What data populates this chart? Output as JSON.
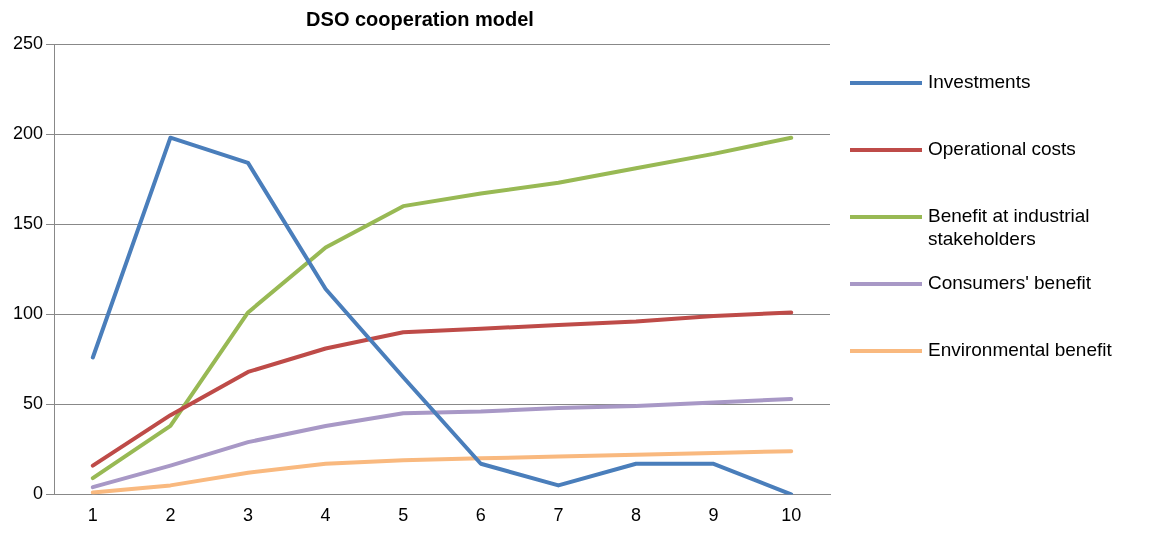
{
  "chart_data": {
    "type": "line",
    "title": "DSO cooperation model",
    "categories": [
      "1",
      "2",
      "3",
      "4",
      "5",
      "6",
      "7",
      "8",
      "9",
      "10"
    ],
    "series": [
      {
        "name": "Investments",
        "color": "#4a7ebb",
        "values": [
          76,
          198,
          184,
          114,
          65,
          17,
          5,
          17,
          17,
          0
        ]
      },
      {
        "name": "Operational costs",
        "color": "#be4b48",
        "values": [
          16,
          44,
          68,
          81,
          90,
          92,
          94,
          96,
          99,
          101
        ]
      },
      {
        "name": "Benefit at industrial stakeholders",
        "color": "#98b954",
        "values": [
          9,
          38,
          101,
          137,
          160,
          167,
          173,
          181,
          189,
          198
        ]
      },
      {
        "name": "Consumers' benefit",
        "color": "#a898c6",
        "values": [
          4,
          16,
          29,
          38,
          45,
          46,
          48,
          49,
          51,
          53
        ]
      },
      {
        "name": "Environmental benefit",
        "color": "#f9b97f",
        "values": [
          1,
          5,
          12,
          17,
          19,
          20,
          21,
          22,
          23,
          24
        ]
      }
    ],
    "ylim": [
      0,
      250
    ],
    "yticks": [
      0,
      50,
      100,
      150,
      200,
      250
    ],
    "grid": "y",
    "legend": "right",
    "marker": "none",
    "line_style": "solid"
  }
}
